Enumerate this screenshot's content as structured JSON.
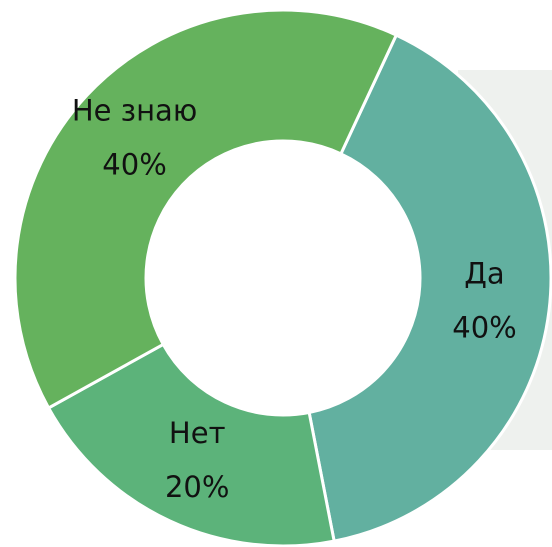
{
  "chart_data": {
    "type": "donut",
    "categories": [
      "Да",
      "Нет",
      "Не знаю"
    ],
    "values": [
      40,
      20,
      40
    ],
    "value_labels": [
      "40%",
      "20%",
      "40%"
    ],
    "colors": [
      "#62b0a0",
      "#5cb37a",
      "#65b25d"
    ]
  }
}
